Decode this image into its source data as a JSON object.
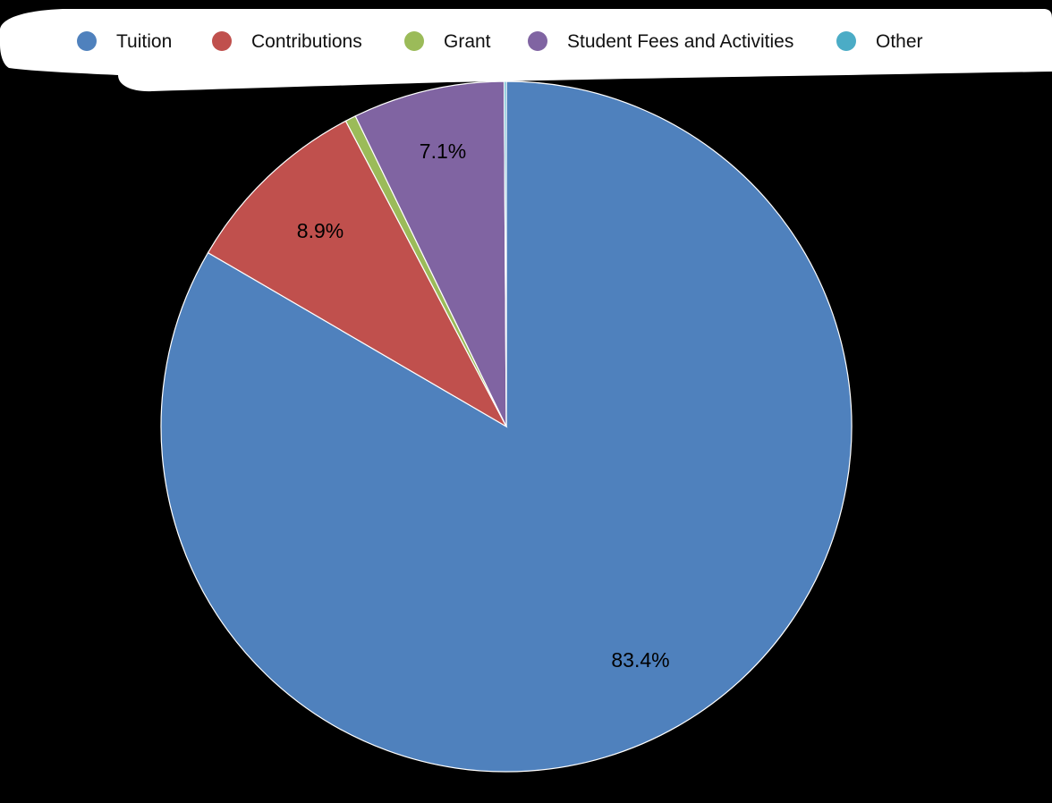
{
  "chart_data": {
    "type": "pie",
    "title": "",
    "start_angle_deg": 0,
    "direction": "clockwise",
    "legend_position": "top",
    "slices": [
      {
        "name": "Tuition",
        "value": 83.4,
        "label": "",
        "color": "#4F81BD"
      },
      {
        "name": "Contributions",
        "value": 8.9,
        "label": "8.9%",
        "color": "#C0504D"
      },
      {
        "name": "Grant",
        "value": 0.5,
        "label": "",
        "color": "#9BBB59"
      },
      {
        "name": "Student Fees and Activities",
        "value": 7.1,
        "label": "7.1%",
        "color": "#8064A2"
      },
      {
        "name": "Other",
        "value": 0.1,
        "label": "",
        "color": "#4BACC6"
      }
    ],
    "main_label": "83.4%"
  }
}
